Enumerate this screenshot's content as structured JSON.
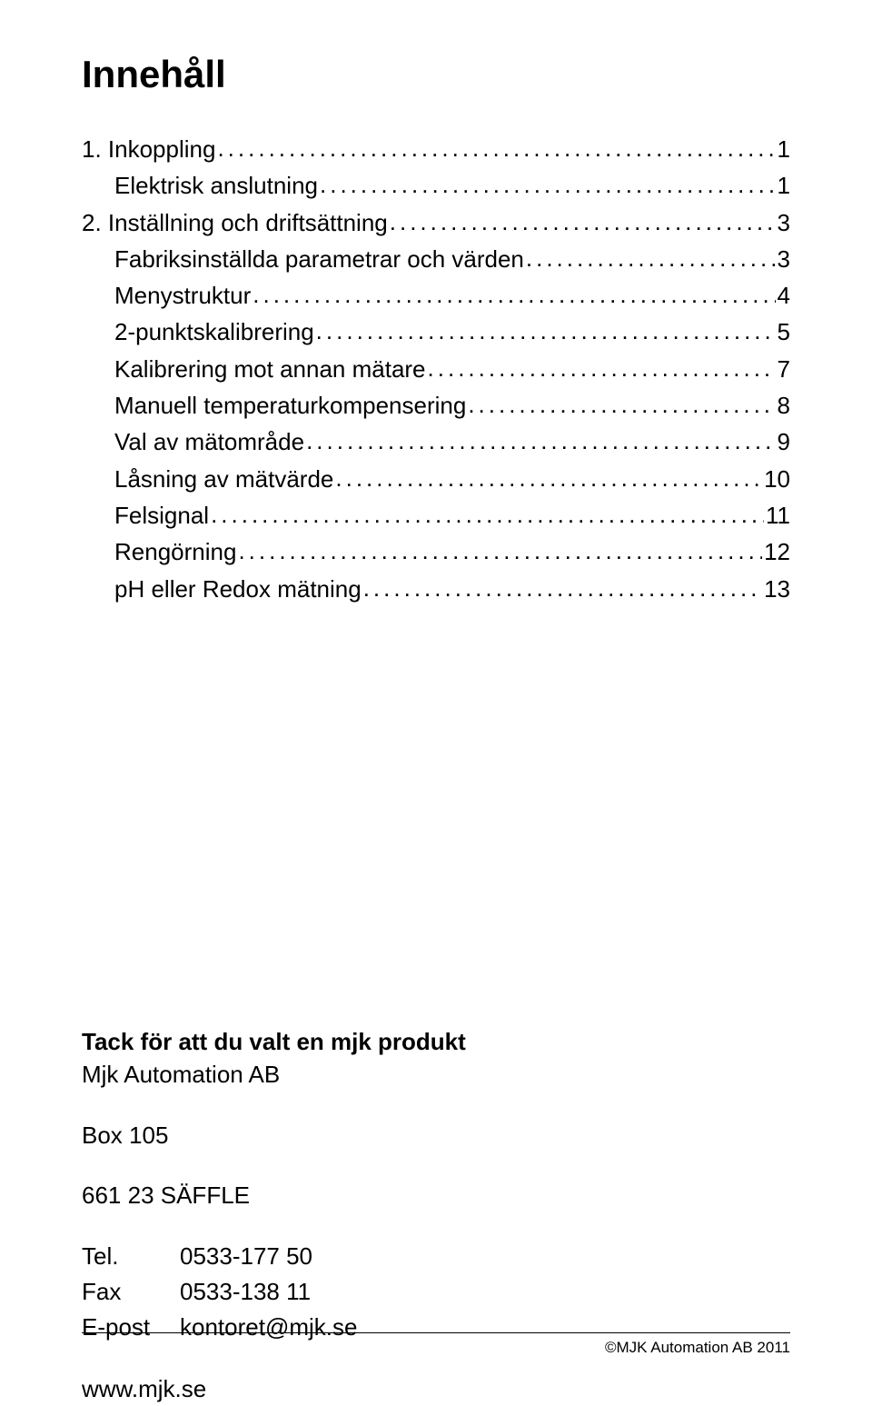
{
  "title": "Innehåll",
  "toc": [
    {
      "label": "1. Inkoppling",
      "page": "1",
      "indent": false
    },
    {
      "label": "Elektrisk anslutning",
      "page": "1",
      "indent": true
    },
    {
      "label": "2. Inställning och driftsättning",
      "page": "3",
      "indent": false
    },
    {
      "label": "Fabriksinställda parametrar och värden",
      "page": "3",
      "indent": true
    },
    {
      "label": "Menystruktur",
      "page": "4",
      "indent": true
    },
    {
      "label": "2-punktskalibrering",
      "page": "5",
      "indent": true
    },
    {
      "label": "Kalibrering mot annan mätare",
      "page": "7",
      "indent": true
    },
    {
      "label": "Manuell temperaturkompensering",
      "page": "8",
      "indent": true
    },
    {
      "label": "Val av mätområde",
      "page": "9",
      "indent": true
    },
    {
      "label": "Låsning av mätvärde",
      "page": "10",
      "indent": true
    },
    {
      "label": "Felsignal",
      "page": "11",
      "indent": true
    },
    {
      "label": "Rengörning",
      "page": "12",
      "indent": true
    },
    {
      "label": "pH eller Redox mätning",
      "page": "13",
      "indent": true
    }
  ],
  "thanks_heading": "Tack för att du valt en mjk produkt",
  "company": "Mjk Automation AB",
  "box": "Box 105",
  "city": "661 23  SÄFFLE",
  "contacts": [
    {
      "label": "Tel.",
      "value": "0533-177 50"
    },
    {
      "label": "Fax",
      "value": "0533-138 11"
    },
    {
      "label": "E-post",
      "value": "kontoret@mjk.se"
    }
  ],
  "website": "www.mjk.se",
  "footer": "©MJK Automation AB 2011"
}
